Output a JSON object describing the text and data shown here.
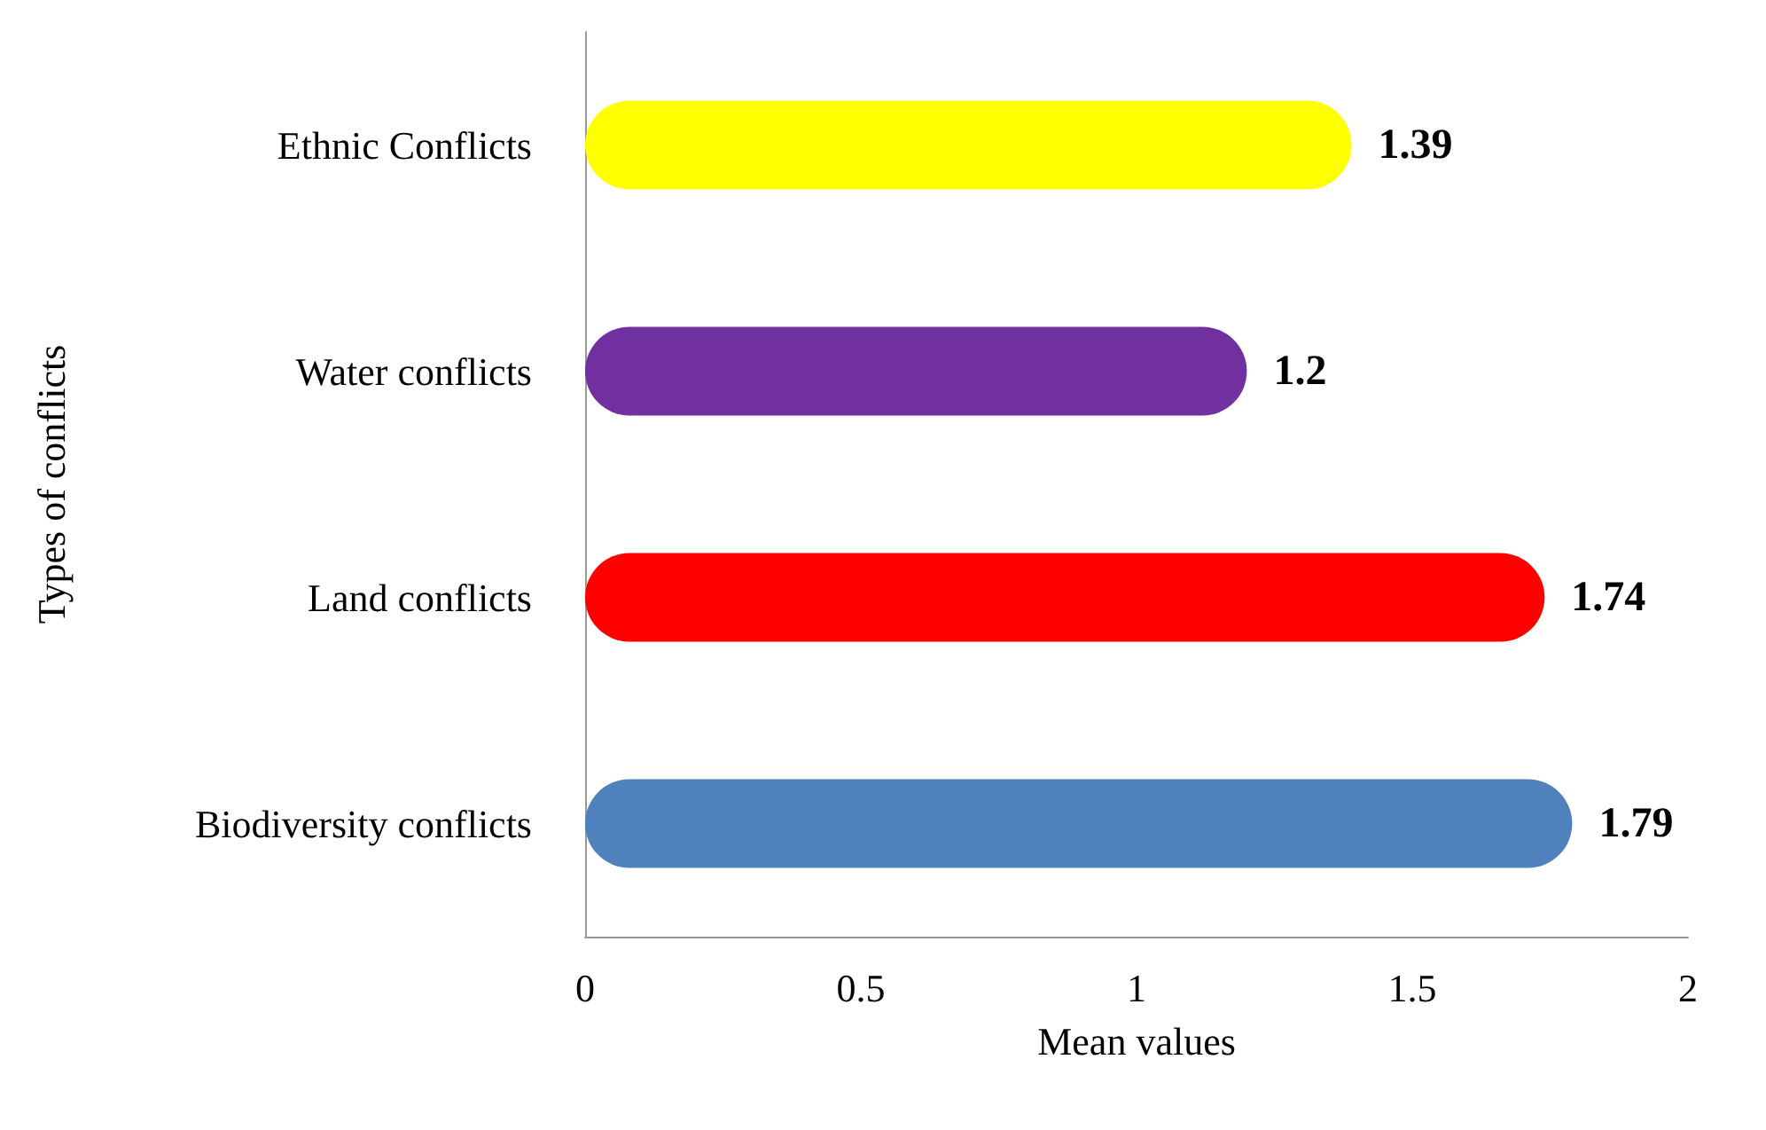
{
  "chart_data": {
    "type": "bar",
    "orientation": "horizontal",
    "xlabel": "Mean values",
    "ylabel": "Types of conflicts",
    "categories": [
      "Ethnic Conflicts",
      "Water conflicts",
      "Land conflicts",
      "Biodiversity conflicts"
    ],
    "values": [
      1.39,
      1.2,
      1.74,
      1.79
    ],
    "colors": [
      "#ffff00",
      "#7030a0",
      "#ff0000",
      "#4f81bd"
    ],
    "xlim": [
      0,
      2
    ],
    "xticks": [
      0,
      0.5,
      1,
      1.5,
      2
    ],
    "grid": false,
    "data_labels": true
  }
}
